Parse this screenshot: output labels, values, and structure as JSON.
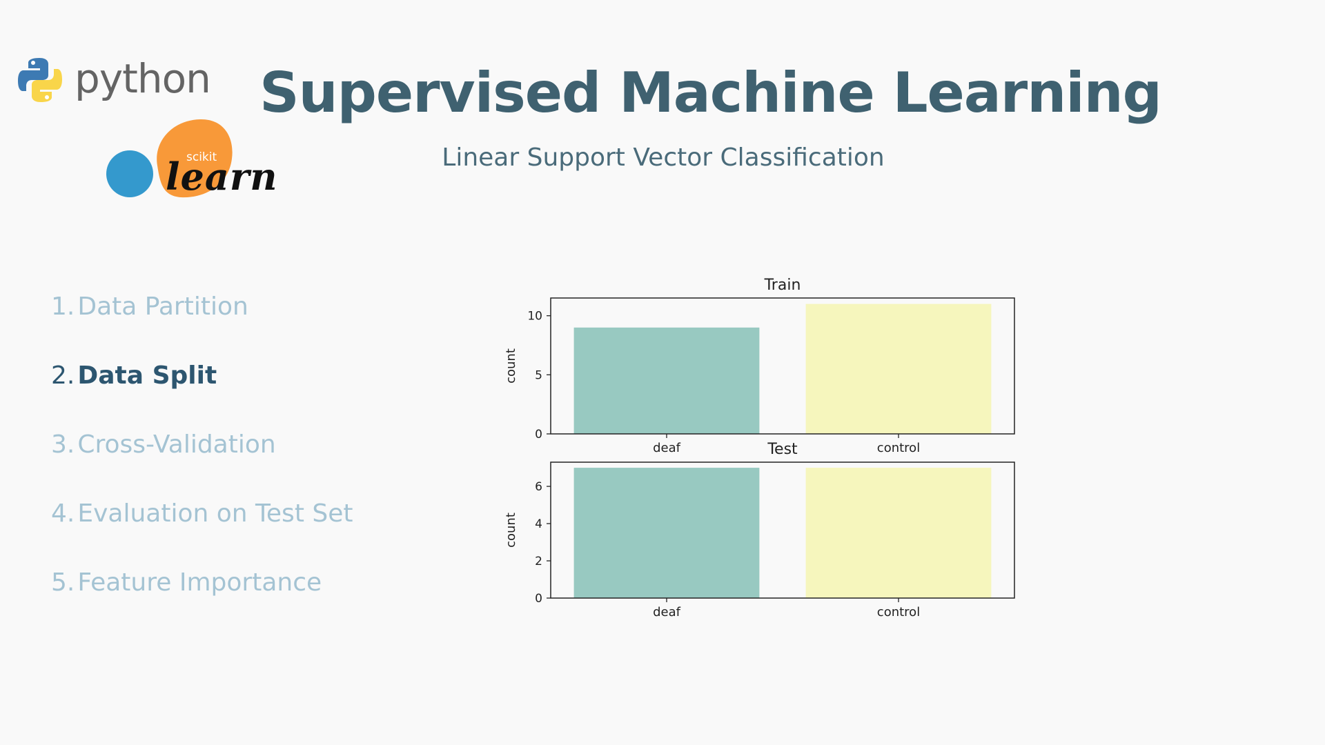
{
  "logos": {
    "python_text": "python",
    "sklearn_small": "scikit",
    "sklearn_big": "learn"
  },
  "header": {
    "title": "Supervised Machine Learning",
    "subtitle": "Linear Support Vector Classification"
  },
  "steps": [
    {
      "num": "1.",
      "label": "Data Partition",
      "active": false
    },
    {
      "num": "2.",
      "label": "Data Split",
      "active": true
    },
    {
      "num": "3.",
      "label": "Cross-Validation",
      "active": false
    },
    {
      "num": "4.",
      "label": "Evaluation on Test Set",
      "active": false
    },
    {
      "num": "5.",
      "label": "Feature Importance",
      "active": false
    }
  ],
  "colors": {
    "title": "#3f6170",
    "step_inactive": "#a4c3d3",
    "step_active": "#2d5670",
    "bar_deaf": "#98c9c1",
    "bar_control": "#f6f6bd"
  },
  "chart_data": [
    {
      "type": "bar",
      "title": "Train",
      "categories": [
        "deaf",
        "control"
      ],
      "values": [
        9,
        11
      ],
      "xlabel": "",
      "ylabel": "count",
      "ylim": [
        0,
        11.5
      ],
      "yticks": [
        0,
        5,
        10
      ],
      "grid": false
    },
    {
      "type": "bar",
      "title": "Test",
      "categories": [
        "deaf",
        "control"
      ],
      "values": [
        7,
        7
      ],
      "xlabel": "",
      "ylabel": "count",
      "ylim": [
        0,
        7.3
      ],
      "yticks": [
        0,
        2,
        4,
        6
      ],
      "grid": false
    }
  ]
}
